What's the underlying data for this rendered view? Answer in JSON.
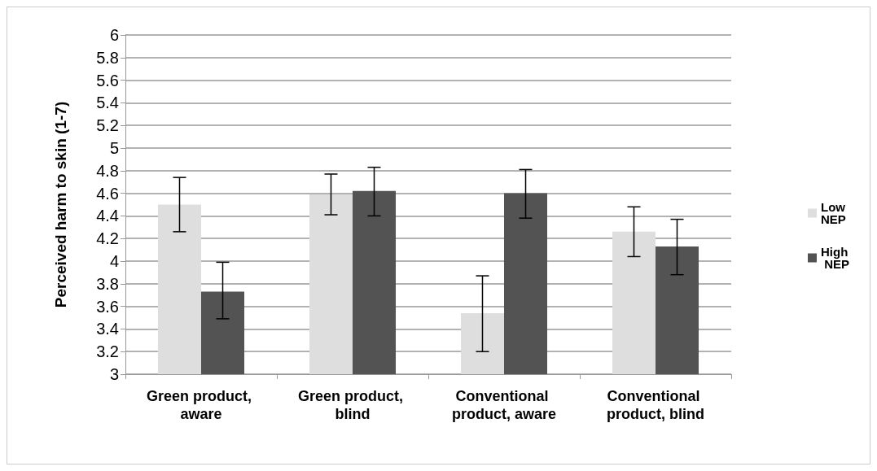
{
  "chart_data": {
    "type": "bar",
    "ylabel": "Perceived harm to skin (1-7)",
    "categories": [
      "Green product, aware",
      "Green product, blind",
      "Conventional product, aware",
      "Conventional product, blind"
    ],
    "series": [
      {
        "name": "Low NEP",
        "color": "#dedede",
        "values": [
          4.5,
          4.59,
          3.54,
          4.26
        ],
        "errors": [
          [
            4.26,
            4.74
          ],
          [
            4.41,
            4.77
          ],
          [
            3.2,
            3.87
          ],
          [
            4.04,
            4.48
          ]
        ]
      },
      {
        "name": "High NEP",
        "color": "#535353",
        "values": [
          3.73,
          4.62,
          4.6,
          4.13
        ],
        "errors": [
          [
            3.49,
            3.99
          ],
          [
            4.4,
            4.83
          ],
          [
            4.38,
            4.81
          ],
          [
            3.88,
            4.37
          ]
        ]
      }
    ],
    "ylim": [
      3,
      6
    ],
    "yticks": [
      3,
      3.2,
      3.4,
      3.6,
      3.8,
      4,
      4.2,
      4.4,
      4.6,
      4.8,
      5,
      5.2,
      5.4,
      5.6,
      5.8,
      6
    ],
    "grid": "y",
    "legend": "right"
  }
}
